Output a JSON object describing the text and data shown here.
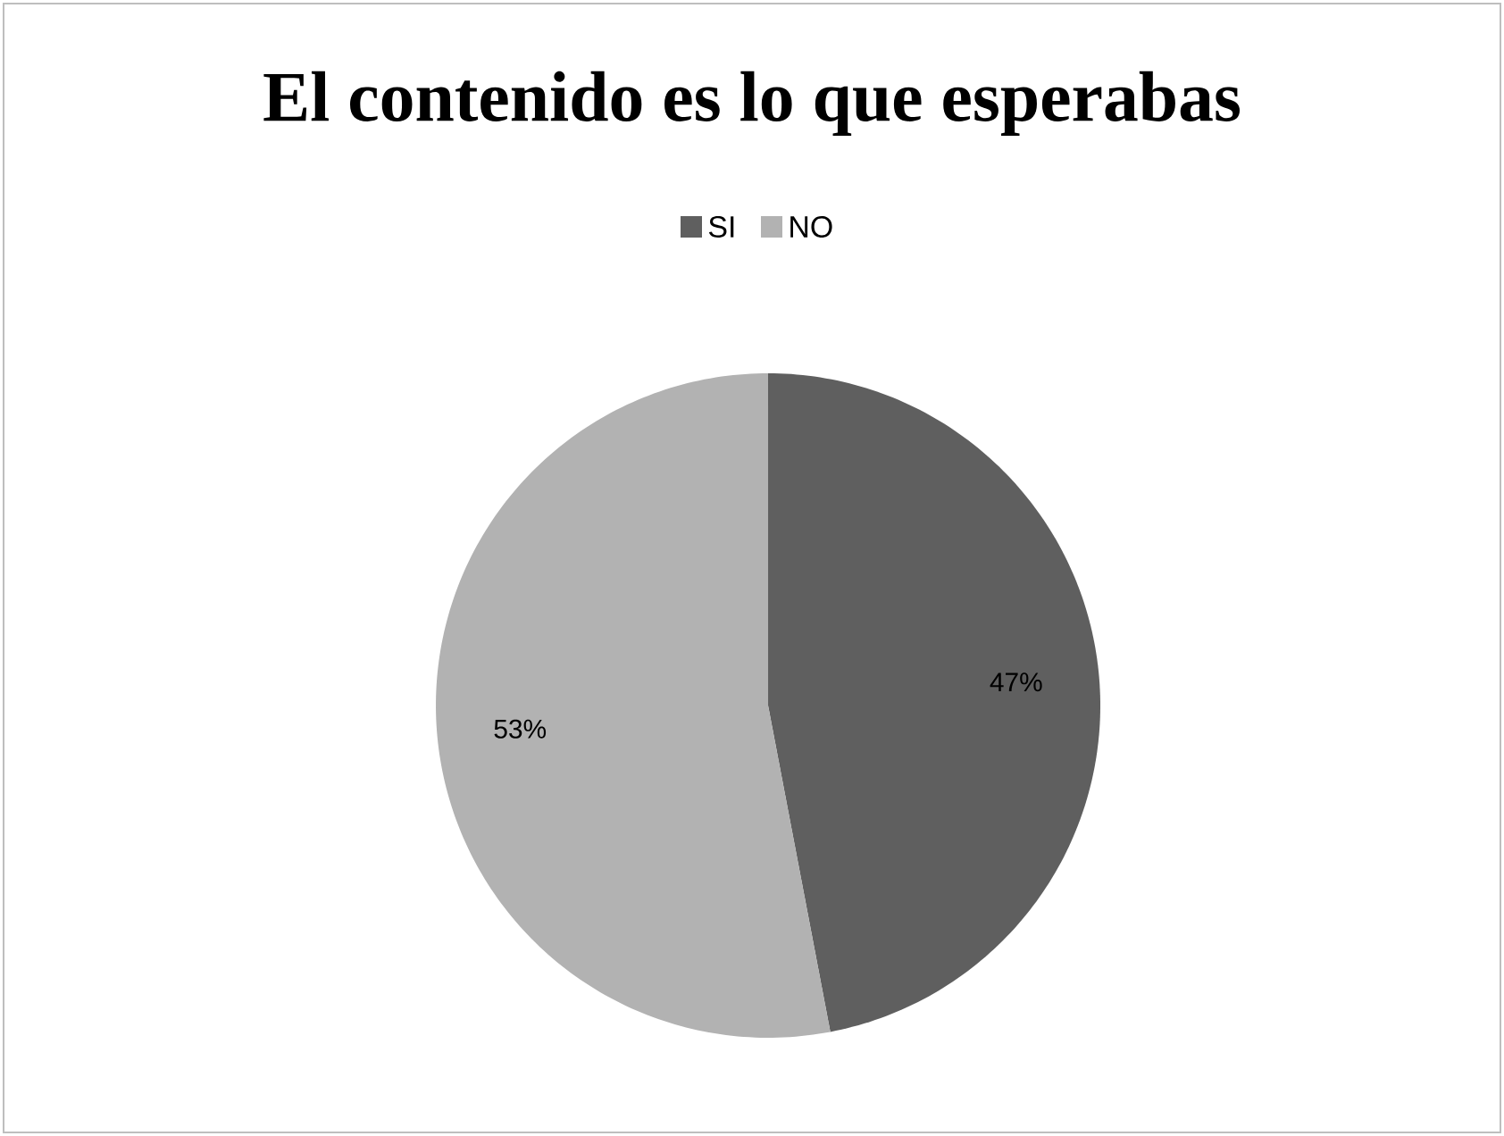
{
  "chart_data": {
    "type": "pie",
    "title": "El contenido es lo que esperabas",
    "categories": [
      "SI",
      "NO"
    ],
    "values": [
      47,
      53
    ],
    "value_labels": [
      "47%",
      "53%"
    ],
    "colors": [
      "#5f5f5f",
      "#b2b2b2"
    ],
    "legend": "top"
  }
}
